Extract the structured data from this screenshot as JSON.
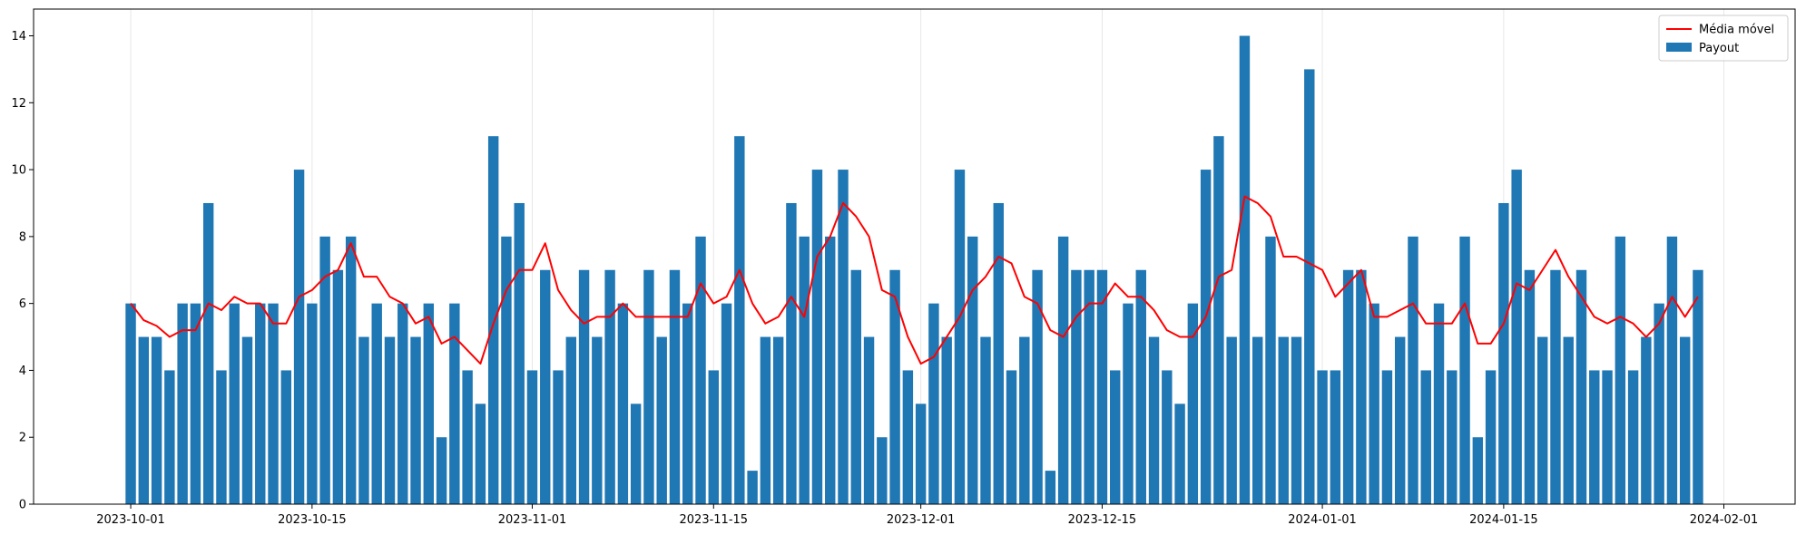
{
  "chart_data": {
    "type": "bar",
    "title": "",
    "xlabel": "",
    "ylabel": "",
    "x_start_date": "2023-10-01",
    "x_end_date": "2024-01-30",
    "x_ticks": [
      "2023-10-01",
      "2023-10-15",
      "2023-11-01",
      "2023-11-15",
      "2023-12-01",
      "2023-12-15",
      "2024-01-01",
      "2024-01-15",
      "2024-02-01"
    ],
    "ylim": [
      0,
      14.8
    ],
    "y_ticks": [
      0,
      2,
      4,
      6,
      8,
      10,
      12,
      14
    ],
    "grid": "vertical",
    "legend_position": "top-right",
    "series": [
      {
        "name": "Payout",
        "type": "bar",
        "color": "#1f77b4",
        "values": [
          6,
          5,
          5,
          4,
          6,
          6,
          9,
          4,
          6,
          5,
          6,
          6,
          4,
          10,
          6,
          8,
          7,
          8,
          5,
          6,
          5,
          6,
          5,
          6,
          2,
          6,
          4,
          3,
          11,
          8,
          9,
          4,
          7,
          4,
          5,
          7,
          5,
          7,
          6,
          3,
          7,
          5,
          7,
          6,
          8,
          4,
          6,
          11,
          1,
          5,
          5,
          9,
          8,
          10,
          8,
          10,
          7,
          5,
          2,
          7,
          4,
          3,
          6,
          5,
          10,
          8,
          5,
          9,
          4,
          5,
          7,
          1,
          8,
          7,
          7,
          7,
          4,
          6,
          7,
          5,
          4,
          3,
          6,
          10,
          11,
          5,
          14,
          5,
          8,
          5,
          5,
          13,
          4,
          4,
          7,
          7,
          6,
          4,
          5,
          8,
          4,
          6,
          4,
          8,
          2,
          4,
          9,
          10,
          7,
          5,
          7,
          5,
          7,
          4,
          4,
          8,
          4,
          5,
          6,
          8,
          5,
          7
        ]
      },
      {
        "name": "Média móvel",
        "type": "line",
        "color": "#ff0000",
        "values": [
          6.0,
          5.5,
          5.33,
          5.0,
          5.2,
          5.2,
          6.0,
          5.8,
          6.2,
          6.0,
          6.0,
          5.4,
          5.4,
          6.2,
          6.4,
          6.8,
          7.0,
          7.8,
          6.8,
          6.8,
          6.2,
          6.0,
          5.4,
          5.6,
          4.8,
          5.0,
          4.6,
          4.2,
          5.4,
          6.4,
          7.0,
          7.0,
          7.8,
          6.4,
          5.8,
          5.4,
          5.6,
          5.6,
          6.0,
          5.6,
          5.6,
          5.6,
          5.6,
          5.6,
          6.6,
          6.0,
          6.2,
          7.0,
          6.0,
          5.4,
          5.6,
          6.2,
          5.6,
          7.4,
          8.0,
          9.0,
          8.6,
          8.0,
          6.4,
          6.2,
          5.0,
          4.2,
          4.4,
          5.0,
          5.6,
          6.4,
          6.8,
          7.4,
          7.2,
          6.2,
          6.0,
          5.2,
          5.0,
          5.6,
          6.0,
          6.0,
          6.6,
          6.2,
          6.2,
          5.8,
          5.2,
          5.0,
          5.0,
          5.6,
          6.8,
          7.0,
          9.2,
          9.0,
          8.6,
          7.4,
          7.4,
          7.2,
          7.0,
          6.2,
          6.6,
          7.0,
          5.6,
          5.6,
          5.8,
          6.0,
          5.4,
          5.4,
          5.4,
          6.0,
          4.8,
          4.8,
          5.4,
          6.6,
          6.4,
          7.0,
          7.6,
          6.8,
          6.2,
          5.6,
          5.4,
          5.6,
          5.4,
          5.0,
          5.4,
          6.2,
          5.6,
          6.2
        ]
      }
    ],
    "legend": [
      {
        "label": "Média móvel",
        "kind": "line",
        "color": "#ff0000"
      },
      {
        "label": "Payout",
        "kind": "bar",
        "color": "#1f77b4"
      }
    ]
  }
}
